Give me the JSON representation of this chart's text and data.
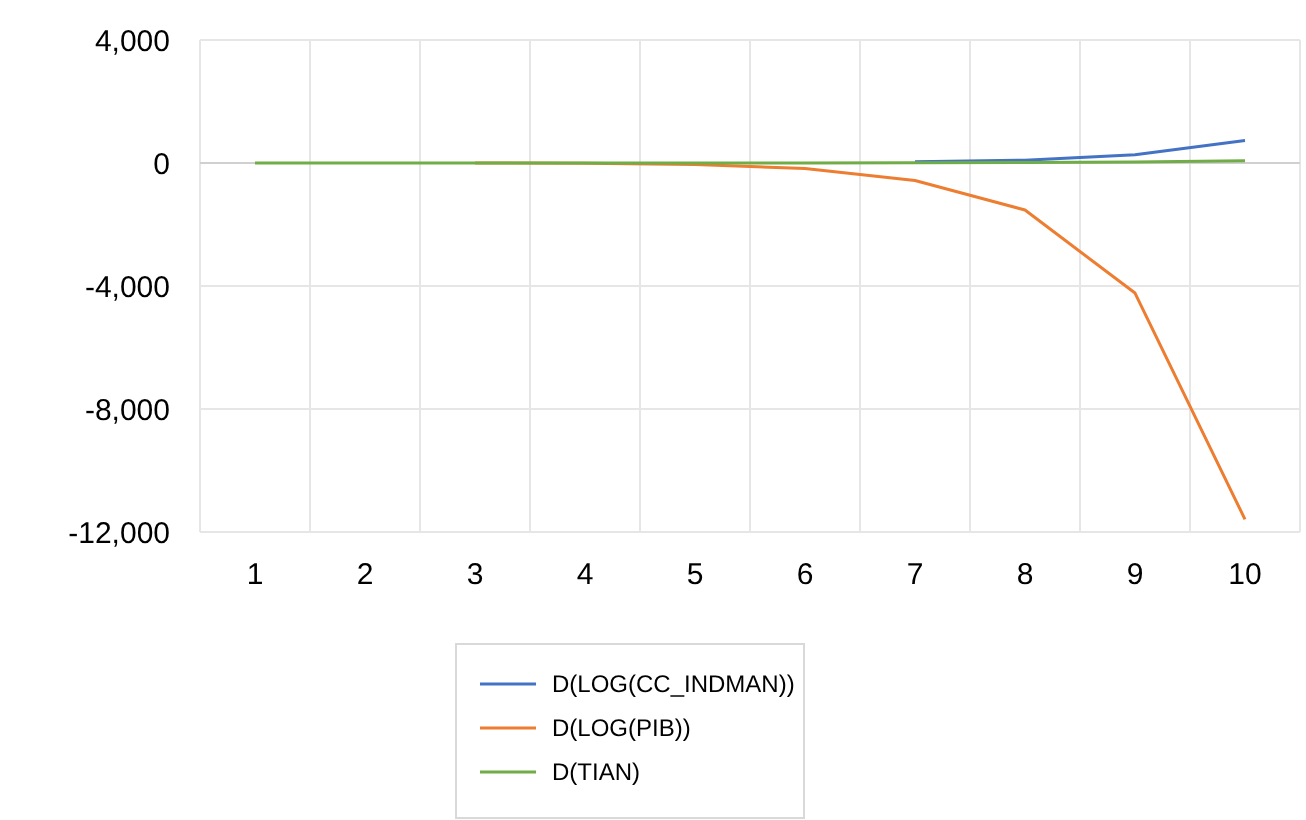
{
  "chart_data": {
    "type": "line",
    "categories": [
      "1",
      "2",
      "3",
      "4",
      "5",
      "6",
      "7",
      "8",
      "9",
      "10"
    ],
    "series": [
      {
        "name": "D(LOG(CC_INDMAN))",
        "color": "#4472c4",
        "values": [
          null,
          null,
          null,
          null,
          null,
          null,
          40,
          90,
          270,
          730
        ]
      },
      {
        "name": "D(LOG(PIB))",
        "color": "#ed7d31",
        "values": [
          null,
          null,
          0,
          -10,
          -50,
          -180,
          -570,
          -1530,
          -4230,
          -11590
        ]
      },
      {
        "name": "D(TIAN)",
        "color": "#70ad47",
        "values": [
          0,
          0,
          0,
          0,
          0,
          0,
          10,
          20,
          30,
          70
        ]
      }
    ],
    "ylim": [
      -12000,
      4000
    ],
    "yticks": [
      {
        "value": 4000,
        "label": "4,000"
      },
      0,
      {
        "value": -4000,
        "label": "-4,000"
      },
      {
        "value": -8000,
        "label": "-8,000"
      },
      {
        "value": -12000,
        "label": "-12,000"
      }
    ],
    "grid": true,
    "legend": "bottom",
    "marker": "none",
    "line_style": "solid"
  }
}
